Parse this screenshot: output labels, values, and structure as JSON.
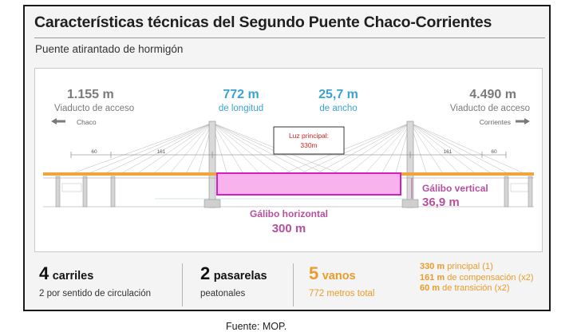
{
  "header": {
    "title": "Características técnicas del Segundo Puente Chaco-Corrientes",
    "subtitle": "Puente atirantado de hormigón"
  },
  "diagram": {
    "left_viaduct": {
      "value": "1.155 m",
      "label": "Viaducto de acceso",
      "side": "Chaco"
    },
    "length": {
      "value": "772 m",
      "label": "de longitud"
    },
    "width": {
      "value": "25,7 m",
      "label": "de ancho"
    },
    "right_viaduct": {
      "value": "4.490 m",
      "label": "Viaducto de acceso",
      "side": "Corrientes"
    },
    "main_span": {
      "line1": "Luz principal:",
      "line2": "330m"
    },
    "span_marks": [
      "60",
      "161",
      "161",
      "60"
    ],
    "vertical_clearance": {
      "label": "Gálibo vertical",
      "value": "36,9 m"
    },
    "horizontal_clearance": {
      "label": "Gálibo horizontal",
      "value": "300 m"
    },
    "colors": {
      "blue": "#3aa3d4",
      "magenta": "#b5509f",
      "deck": "#f0a43a",
      "clearance_fill": "#f8b2ec",
      "clearance_stroke": "#d21fc3",
      "red_text": "#d21f1f"
    }
  },
  "stats": {
    "lanes": {
      "number": "4",
      "unit": "carriles",
      "detail": "2 por sentido de circulación"
    },
    "walkways": {
      "number": "2",
      "unit": "pasarelas",
      "detail": "peatonales"
    },
    "spans": {
      "number": "5",
      "unit": "vanos",
      "detail": "772 metros total"
    },
    "breakdown": [
      {
        "value": "330 m",
        "text": "principal (1)"
      },
      {
        "value": "161 m",
        "text": "de compensación (x2)"
      },
      {
        "value": "60 m",
        "text": "de transición (x2)"
      }
    ]
  },
  "caption": "Fuente: MOP."
}
